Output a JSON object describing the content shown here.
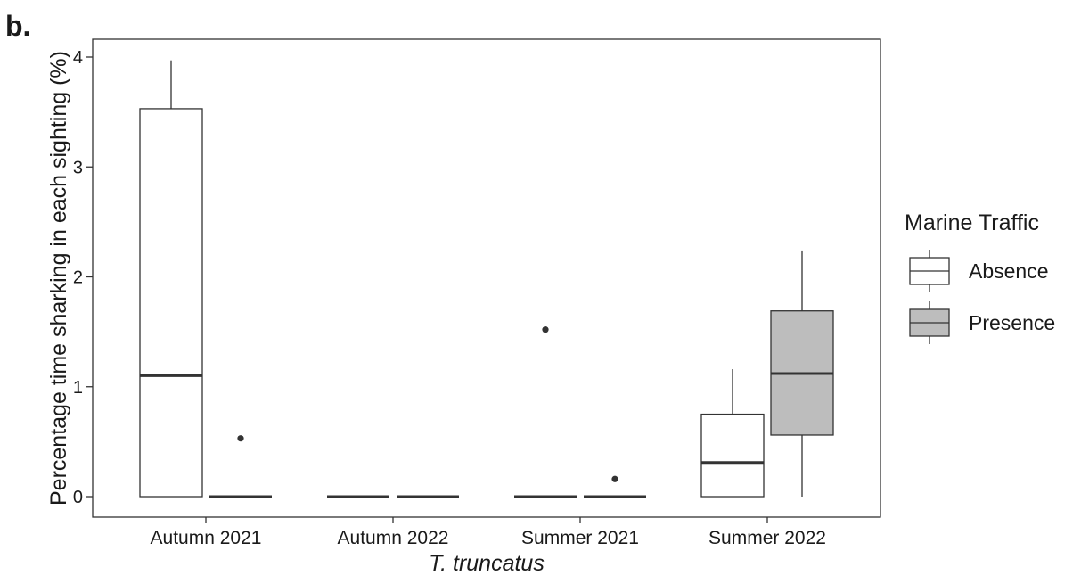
{
  "panel_label": "b.",
  "chart_data": {
    "type": "boxplot",
    "title": "",
    "xlabel": "T. truncatus",
    "ylabel": "Percentage time sharking in each sighting (%)",
    "ylim": [
      -0.2,
      4.1
    ],
    "yticks": [
      0,
      1,
      2,
      3,
      4
    ],
    "categories": [
      "Autumn 2021",
      "Autumn 2022",
      "Summer 2021",
      "Summer 2022"
    ],
    "grid": false,
    "legend": {
      "title": "Marine Traffic",
      "position": "right",
      "entries": [
        {
          "name": "Absence",
          "color": "#ffffff"
        },
        {
          "name": "Presence",
          "color": "#bdbdbd"
        }
      ]
    },
    "series": [
      {
        "name": "Absence",
        "color": "#ffffff",
        "boxes": [
          {
            "category": "Autumn 2021",
            "min": 0,
            "q1": 0,
            "median": 1.1,
            "q3": 3.53,
            "max": 3.97,
            "outliers": []
          },
          {
            "category": "Autumn 2022",
            "min": 0,
            "q1": 0,
            "median": 0,
            "q3": 0,
            "max": 0,
            "outliers": []
          },
          {
            "category": "Summer 2021",
            "min": 0,
            "q1": 0,
            "median": 0,
            "q3": 0,
            "max": 0,
            "outliers": [
              1.52
            ]
          },
          {
            "category": "Summer 2022",
            "min": 0,
            "q1": 0,
            "median": 0.31,
            "q3": 0.75,
            "max": 1.16,
            "outliers": []
          }
        ]
      },
      {
        "name": "Presence",
        "color": "#bdbdbd",
        "boxes": [
          {
            "category": "Autumn 2021",
            "min": 0,
            "q1": 0,
            "median": 0,
            "q3": 0,
            "max": 0,
            "outliers": [
              0.53
            ]
          },
          {
            "category": "Autumn 2022",
            "min": 0,
            "q1": 0,
            "median": 0,
            "q3": 0,
            "max": 0,
            "outliers": []
          },
          {
            "category": "Summer 2021",
            "min": 0,
            "q1": 0,
            "median": 0,
            "q3": 0,
            "max": 0,
            "outliers": [
              0.16
            ]
          },
          {
            "category": "Summer 2022",
            "min": 0,
            "q1": 0.56,
            "median": 1.12,
            "q3": 1.69,
            "max": 2.24,
            "outliers": []
          }
        ]
      }
    ]
  }
}
